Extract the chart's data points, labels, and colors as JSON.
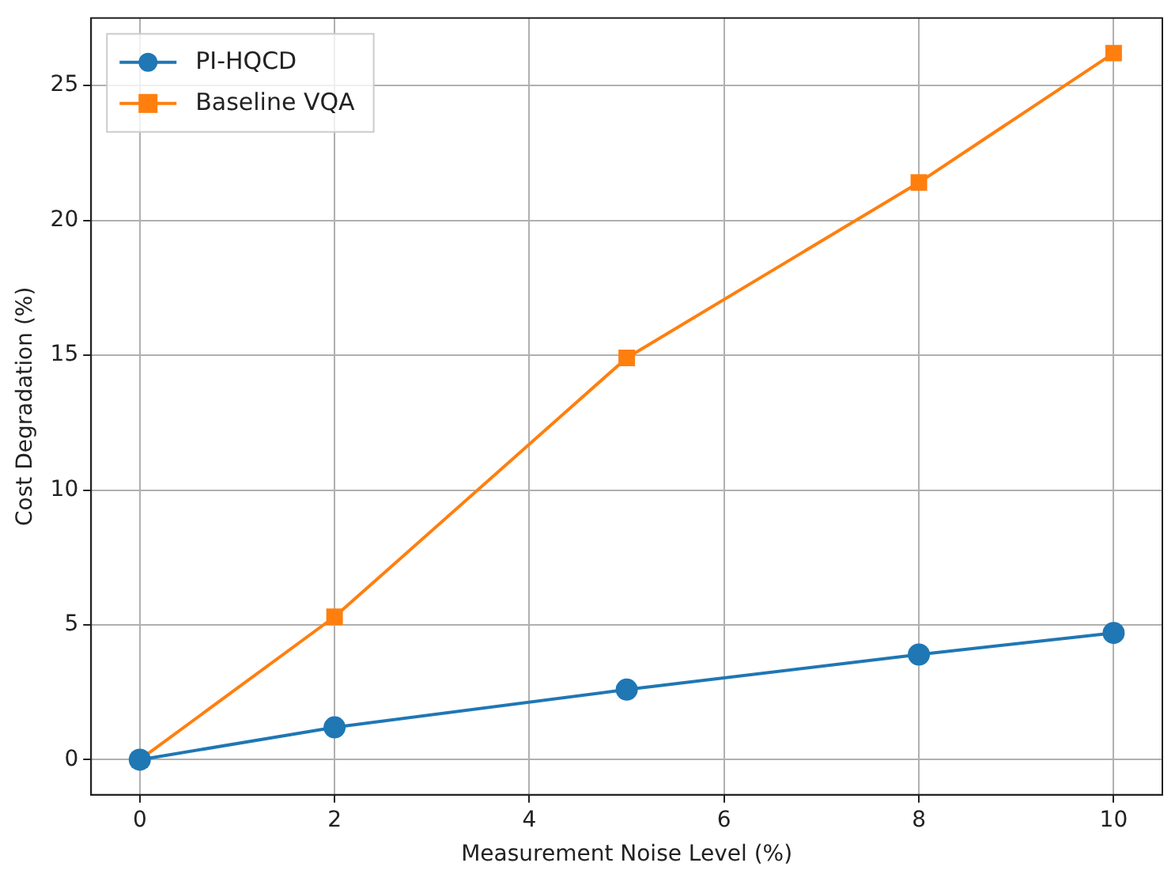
{
  "chart_data": {
    "type": "line",
    "xlabel": "Measurement Noise Level (%)",
    "ylabel": "Cost Degradation (%)",
    "x": [
      0,
      2,
      5,
      8,
      10
    ],
    "series": [
      {
        "name": "PI-HQCD",
        "color": "#1f77b4",
        "marker": "circle",
        "values": [
          0,
          1.2,
          2.6,
          3.9,
          4.7
        ]
      },
      {
        "name": "Baseline VQA",
        "color": "#ff7f0e",
        "marker": "square",
        "values": [
          0,
          5.3,
          14.9,
          21.4,
          26.2
        ]
      }
    ],
    "xlim": [
      -0.5,
      10.5
    ],
    "xticks": [
      0,
      2,
      4,
      6,
      8,
      10
    ],
    "ylim": [
      -1.3,
      27.5
    ],
    "yticks": [
      0,
      5,
      10,
      15,
      20,
      25
    ],
    "grid": true,
    "legend": "top left",
    "line_style": "solid"
  }
}
